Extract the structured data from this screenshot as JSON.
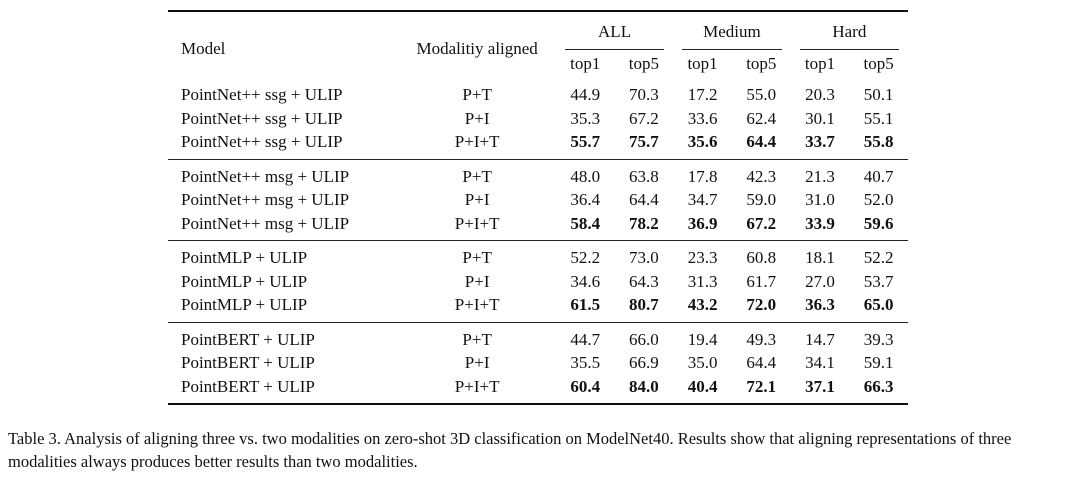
{
  "table": {
    "headers": {
      "model": "Model",
      "modality": "Modalitiy aligned",
      "groups": [
        "ALL",
        "Medium",
        "Hard"
      ],
      "sub": [
        "top1",
        "top5",
        "top1",
        "top5",
        "top1",
        "top5"
      ]
    },
    "groups": [
      {
        "rows": [
          {
            "model": "PointNet++ ssg + ULIP",
            "modality": "P+T",
            "values": [
              "44.9",
              "70.3",
              "17.2",
              "55.0",
              "20.3",
              "50.1"
            ],
            "bold": false
          },
          {
            "model": "PointNet++ ssg + ULIP",
            "modality": "P+I",
            "values": [
              "35.3",
              "67.2",
              "33.6",
              "62.4",
              "30.1",
              "55.1"
            ],
            "bold": false
          },
          {
            "model": "PointNet++ ssg + ULIP",
            "modality": "P+I+T",
            "values": [
              "55.7",
              "75.7",
              "35.6",
              "64.4",
              "33.7",
              "55.8"
            ],
            "bold": true
          }
        ]
      },
      {
        "rows": [
          {
            "model": "PointNet++ msg + ULIP",
            "modality": "P+T",
            "values": [
              "48.0",
              "63.8",
              "17.8",
              "42.3",
              "21.3",
              "40.7"
            ],
            "bold": false
          },
          {
            "model": "PointNet++ msg + ULIP",
            "modality": "P+I",
            "values": [
              "36.4",
              "64.4",
              "34.7",
              "59.0",
              "31.0",
              "52.0"
            ],
            "bold": false
          },
          {
            "model": "PointNet++ msg + ULIP",
            "modality": "P+I+T",
            "values": [
              "58.4",
              "78.2",
              "36.9",
              "67.2",
              "33.9",
              "59.6"
            ],
            "bold": true
          }
        ]
      },
      {
        "rows": [
          {
            "model": "PointMLP + ULIP",
            "modality": "P+T",
            "values": [
              "52.2",
              "73.0",
              "23.3",
              "60.8",
              "18.1",
              "52.2"
            ],
            "bold": false
          },
          {
            "model": "PointMLP + ULIP",
            "modality": "P+I",
            "values": [
              "34.6",
              "64.3",
              "31.3",
              "61.7",
              "27.0",
              "53.7"
            ],
            "bold": false
          },
          {
            "model": "PointMLP + ULIP",
            "modality": "P+I+T",
            "values": [
              "61.5",
              "80.7",
              "43.2",
              "72.0",
              "36.3",
              "65.0"
            ],
            "bold": true
          }
        ]
      },
      {
        "rows": [
          {
            "model": "PointBERT + ULIP",
            "modality": "P+T",
            "values": [
              "44.7",
              "66.0",
              "19.4",
              "49.3",
              "14.7",
              "39.3"
            ],
            "bold": false
          },
          {
            "model": "PointBERT + ULIP",
            "modality": "P+I",
            "values": [
              "35.5",
              "66.9",
              "35.0",
              "64.4",
              "34.1",
              "59.1"
            ],
            "bold": false
          },
          {
            "model": "PointBERT + ULIP",
            "modality": "P+I+T",
            "values": [
              "60.4",
              "84.0",
              "40.4",
              "72.1",
              "37.1",
              "66.3"
            ],
            "bold": true
          }
        ]
      }
    ]
  },
  "caption": "Table 3. Analysis of aligning three vs. two modalities on zero-shot 3D classification on ModelNet40. Results show that aligning representations of three modalities always produces better results than two modalities."
}
